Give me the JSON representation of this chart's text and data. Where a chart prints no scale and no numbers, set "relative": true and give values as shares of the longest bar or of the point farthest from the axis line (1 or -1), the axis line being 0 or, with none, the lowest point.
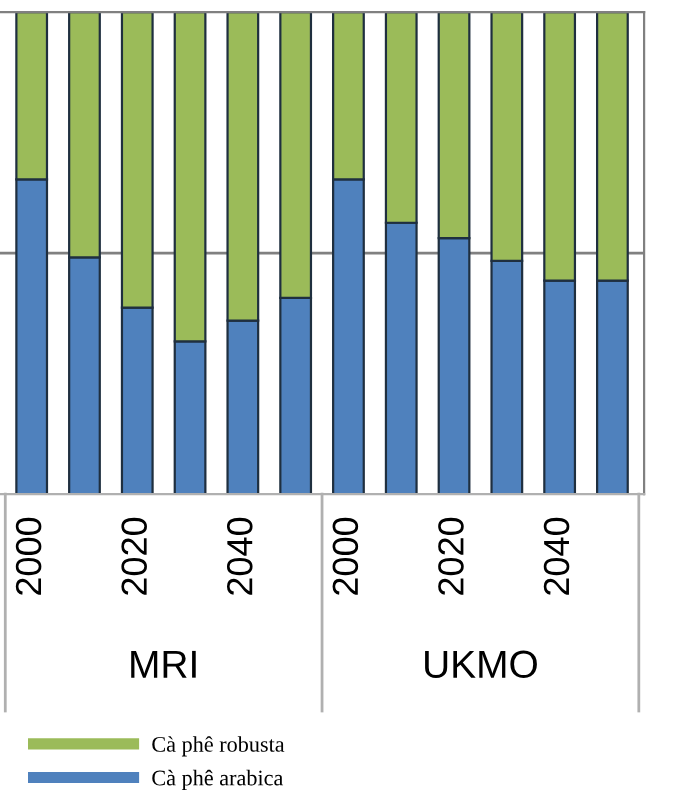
{
  "chart_data": {
    "type": "bar",
    "stacked": true,
    "relative": true,
    "categories": [
      "2000",
      null,
      "2020",
      null,
      "2040",
      null,
      "2000",
      null,
      "2020",
      null,
      "2040",
      null
    ],
    "series": [
      {
        "name": "Cà phê arabica",
        "color": "#4f81bd",
        "values": [
          0.653,
          0.491,
          0.387,
          0.317,
          0.36,
          0.407,
          0.653,
          0.563,
          0.531,
          0.484,
          0.443,
          0.443
        ]
      },
      {
        "name": "Cà phê robusta",
        "color": "#9bbb59",
        "values": [
          0.347,
          0.509,
          0.613,
          0.683,
          0.64,
          0.593,
          0.347,
          0.437,
          0.469,
          0.516,
          0.557,
          0.557
        ]
      }
    ],
    "annotations": [
      "MRI",
      "UKMO"
    ],
    "ref_lines": [
      {
        "axis": "y",
        "value": 0.5,
        "color": "#808080"
      }
    ],
    "legend": "bottom left"
  }
}
